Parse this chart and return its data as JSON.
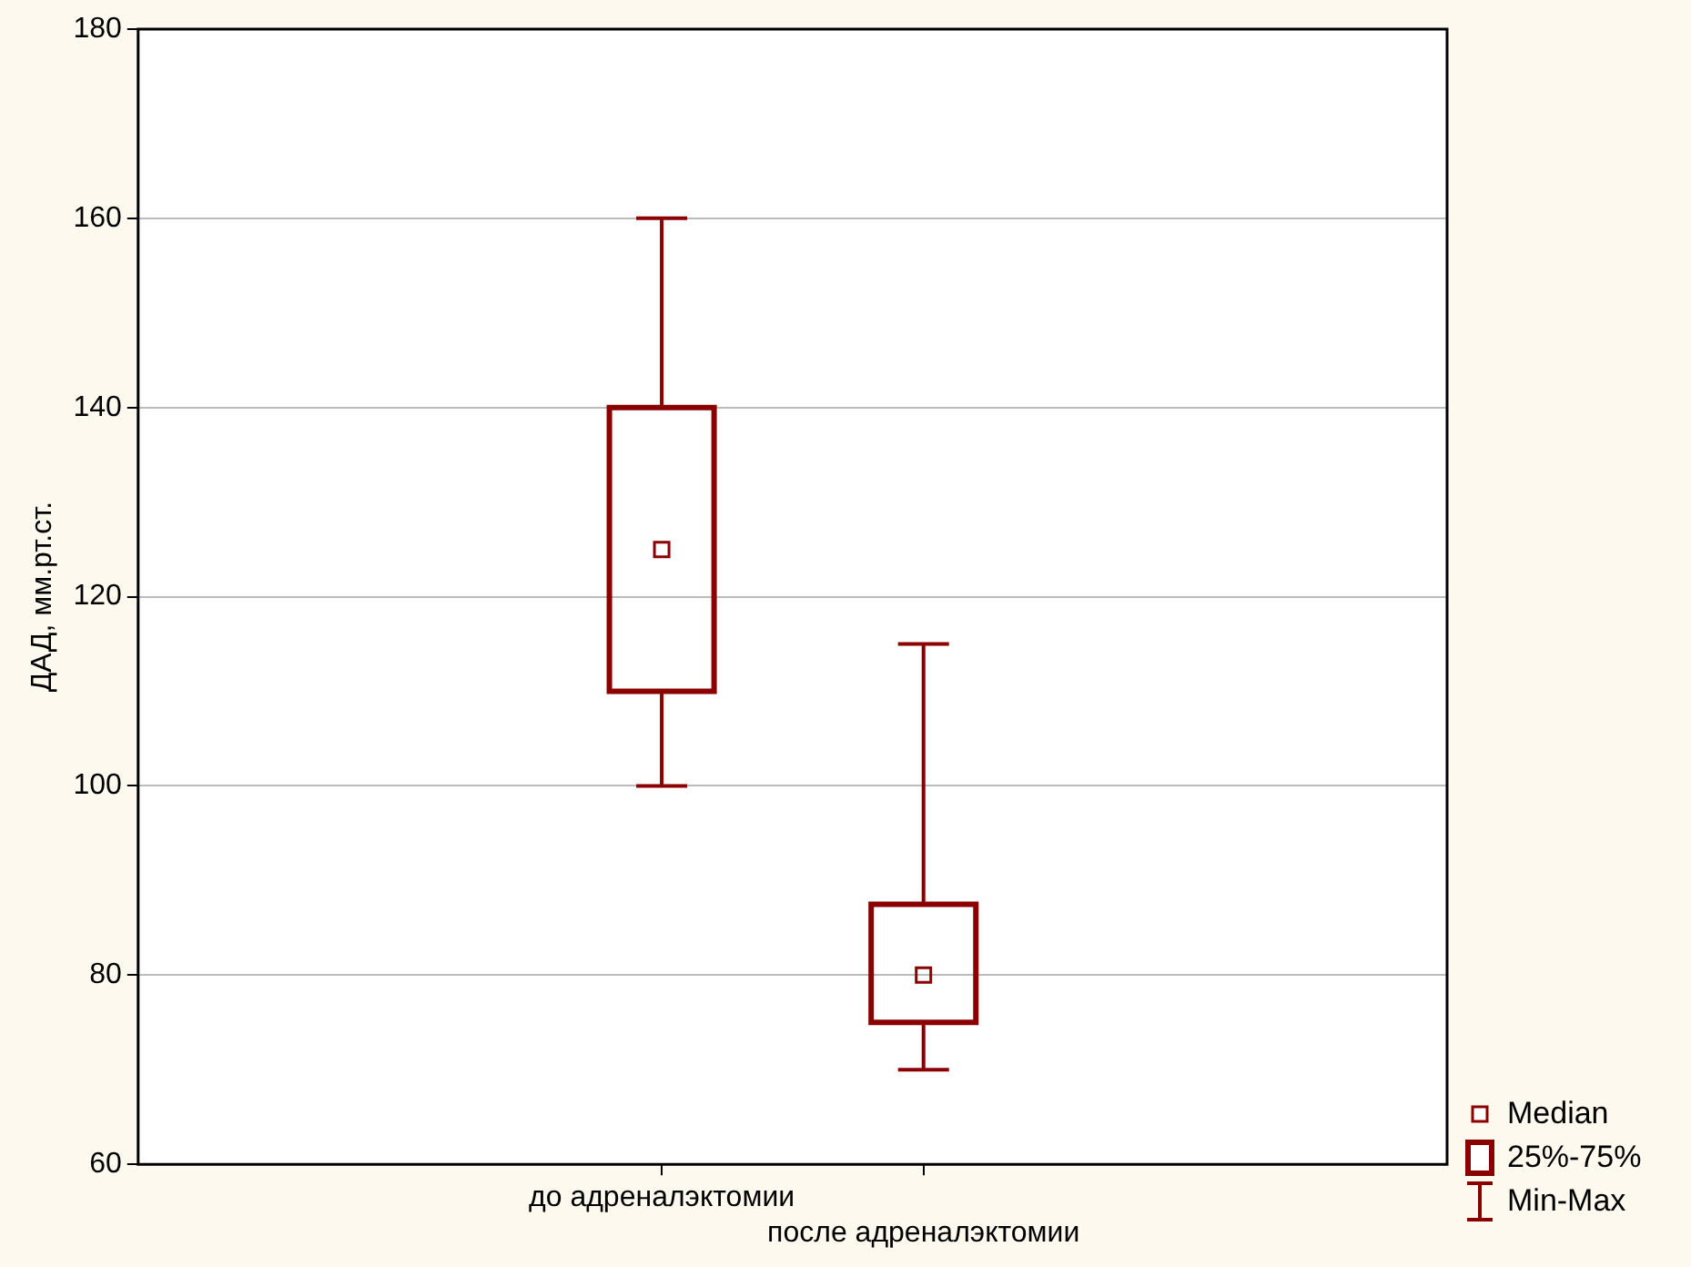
{
  "chart_data": {
    "type": "box",
    "ylabel": "ДАД, мм.рт.ст.",
    "categories": [
      "до адреналэктомии",
      "после адреналэктомии"
    ],
    "boxes": [
      {
        "low": 100,
        "q1": 110,
        "median": 125,
        "q3": 140,
        "high": 160
      },
      {
        "low": 70,
        "q1": 75,
        "median": 80,
        "q3": 87.5,
        "high": 115
      }
    ],
    "color": "#8b0000",
    "ylim": [
      60,
      180
    ],
    "yticks": [
      60,
      80,
      100,
      120,
      140,
      160,
      180
    ],
    "grid": "y",
    "annotations": [
      "Median",
      "25%-75%",
      "Min-Max"
    ]
  }
}
